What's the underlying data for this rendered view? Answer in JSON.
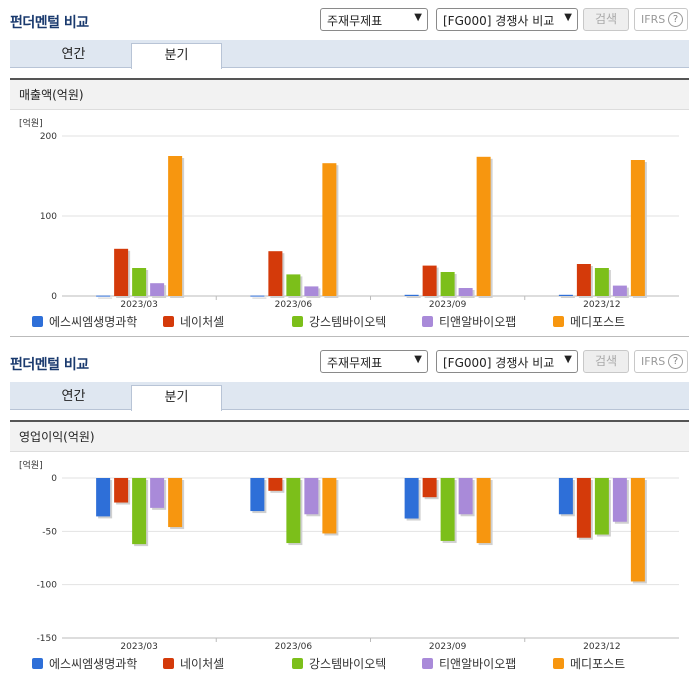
{
  "panels": [
    {
      "title": "펀더멘털 비교",
      "select1": "주재무제표",
      "select2": "[FG000] 경쟁사 비교",
      "search_label": "검색",
      "ifrs_label": "IFRS",
      "help_label": "?",
      "tabs": [
        {
          "label": "연간"
        },
        {
          "label": "분기"
        }
      ],
      "section_title": "매출액(억원)",
      "legend": [
        {
          "label": "에스씨엠생명과학",
          "color": "#2e6fd8"
        },
        {
          "label": "네이처셀",
          "color": "#d43a0a"
        },
        {
          "label": "강스템바이오텍",
          "color": "#7cbf1a"
        },
        {
          "label": "티앤알바이오팹",
          "color": "#a98ad9"
        },
        {
          "label": "메디포스트",
          "color": "#f7960f"
        }
      ]
    },
    {
      "title": "펀더멘털 비교",
      "select1": "주재무제표",
      "select2": "[FG000] 경쟁사 비교",
      "search_label": "검색",
      "ifrs_label": "IFRS",
      "help_label": "?",
      "tabs": [
        {
          "label": "연간"
        },
        {
          "label": "분기"
        }
      ],
      "section_title": "영업이익(억원)",
      "legend": [
        {
          "label": "에스씨엠생명과학",
          "color": "#2e6fd8"
        },
        {
          "label": "네이처셀",
          "color": "#d43a0a"
        },
        {
          "label": "강스템바이오텍",
          "color": "#7cbf1a"
        },
        {
          "label": "티앤알바이오팹",
          "color": "#a98ad9"
        },
        {
          "label": "메디포스트",
          "color": "#f7960f"
        }
      ]
    }
  ],
  "chart_data": [
    {
      "type": "bar",
      "unit_label": "[억원]",
      "categories": [
        "2023/03",
        "2023/06",
        "2023/09",
        "2023/12"
      ],
      "ylim": [
        0,
        200
      ],
      "yticks": [
        0,
        100,
        200
      ],
      "grid": true,
      "legend_position": "bottom",
      "series": [
        {
          "name": "에스씨엠생명과학",
          "color": "#2e6fd8",
          "values": [
            0.5,
            0.5,
            1.5,
            1.5
          ]
        },
        {
          "name": "네이처셀",
          "color": "#d43a0a",
          "values": [
            59,
            56,
            38,
            40
          ]
        },
        {
          "name": "강스템바이오텍",
          "color": "#7cbf1a",
          "values": [
            35,
            27,
            30,
            35
          ]
        },
        {
          "name": "티앤알바이오팹",
          "color": "#a98ad9",
          "values": [
            16,
            12,
            10,
            13
          ]
        },
        {
          "name": "메디포스트",
          "color": "#f7960f",
          "values": [
            175,
            166,
            174,
            170
          ]
        }
      ]
    },
    {
      "type": "bar",
      "unit_label": "[억원]",
      "categories": [
        "2023/03",
        "2023/06",
        "2023/09",
        "2023/12"
      ],
      "ylim": [
        -150,
        0
      ],
      "yticks": [
        0,
        -50,
        -100,
        -150
      ],
      "grid": true,
      "legend_position": "bottom",
      "series": [
        {
          "name": "에스씨엠생명과학",
          "color": "#2e6fd8",
          "values": [
            -36,
            -31,
            -38,
            -34
          ]
        },
        {
          "name": "네이처셀",
          "color": "#d43a0a",
          "values": [
            -23,
            -12,
            -18,
            -56
          ]
        },
        {
          "name": "강스템바이오텍",
          "color": "#7cbf1a",
          "values": [
            -62,
            -61,
            -59,
            -53
          ]
        },
        {
          "name": "티앤알바이오팹",
          "color": "#a98ad9",
          "values": [
            -28,
            -34,
            -34,
            -41
          ]
        },
        {
          "name": "메디포스트",
          "color": "#f7960f",
          "values": [
            -46,
            -52,
            -61,
            -97
          ]
        }
      ]
    }
  ]
}
